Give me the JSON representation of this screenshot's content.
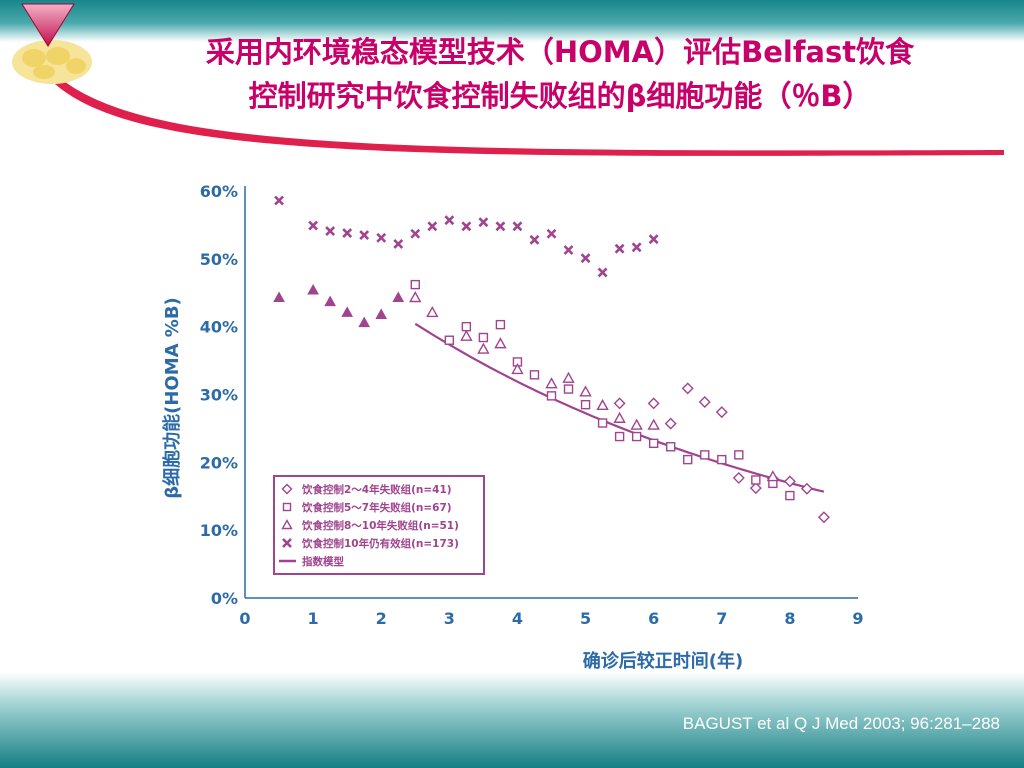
{
  "slide": {
    "title_line1": "采用内环境稳态模型技术（HOMA）评估Belfast饮食",
    "title_line2": "控制研究中饮食控制失败组的β细胞功能（％B）",
    "citation": "BAGUST et al  Q J Med 2003; 96:281–288",
    "colors": {
      "title": "#c8006a",
      "series": "#a0448f",
      "axis_text": "#2c6ba7",
      "band_top": "#17868a",
      "band_bottom": "#147f83",
      "swoosh": "#e0204c"
    }
  },
  "chart_data": {
    "type": "scatter",
    "xlabel": "确诊后较正时间(年)",
    "ylabel": "β细胞功能(HOMA %B)",
    "xlim": [
      0,
      9
    ],
    "ylim": [
      0,
      60
    ],
    "xticks": [
      "0",
      "1",
      "2",
      "3",
      "4",
      "5",
      "6",
      "7",
      "8",
      "9"
    ],
    "yticks": [
      "0%",
      "10%",
      "20%",
      "30%",
      "40%",
      "50%",
      "60%"
    ],
    "legend_position": "bottom-left",
    "series": [
      {
        "name": "饮食控制2～4年失败组(n=41)",
        "marker": "diamond",
        "points": [
          [
            5.5,
            28.7
          ],
          [
            6.0,
            28.7
          ],
          [
            6.25,
            25.7
          ],
          [
            6.5,
            30.9
          ],
          [
            6.75,
            28.9
          ],
          [
            7.0,
            27.4
          ],
          [
            7.25,
            17.7
          ],
          [
            7.5,
            16.2
          ],
          [
            7.75,
            17.6
          ],
          [
            8.0,
            17.2
          ],
          [
            8.25,
            16.1
          ],
          [
            8.5,
            11.9
          ]
        ]
      },
      {
        "name": "饮食控制5～7年失败组(n=67)",
        "marker": "square",
        "points": [
          [
            2.5,
            46.2
          ],
          [
            3.0,
            38.0
          ],
          [
            3.25,
            40.0
          ],
          [
            3.5,
            38.4
          ],
          [
            3.75,
            40.3
          ],
          [
            4.0,
            34.8
          ],
          [
            4.25,
            32.9
          ],
          [
            4.5,
            29.8
          ],
          [
            4.75,
            30.8
          ],
          [
            5.0,
            28.5
          ],
          [
            5.25,
            25.8
          ],
          [
            5.5,
            23.8
          ],
          [
            5.75,
            23.8
          ],
          [
            6.0,
            22.8
          ],
          [
            6.25,
            22.3
          ],
          [
            6.5,
            20.4
          ],
          [
            6.75,
            21.1
          ],
          [
            7.0,
            20.4
          ],
          [
            7.25,
            21.1
          ],
          [
            7.5,
            17.4
          ],
          [
            7.75,
            16.9
          ],
          [
            8.0,
            15.1
          ]
        ]
      },
      {
        "name": "饮食控制8～10年失败组(n=51)",
        "marker": "triangle",
        "points": [
          [
            2.5,
            44.3
          ],
          [
            2.75,
            42.1
          ],
          [
            3.25,
            38.6
          ],
          [
            3.5,
            36.7
          ],
          [
            3.75,
            37.5
          ],
          [
            4.0,
            33.7
          ],
          [
            4.5,
            31.6
          ],
          [
            4.75,
            32.4
          ],
          [
            5.0,
            30.4
          ],
          [
            5.25,
            28.4
          ],
          [
            5.5,
            26.5
          ],
          [
            5.75,
            25.5
          ],
          [
            6.0,
            25.5
          ],
          [
            7.75,
            17.9
          ]
        ]
      },
      {
        "name": "饮食控制10年仍有效组(n=173)",
        "marker": "x",
        "points": [
          [
            0.5,
            58.6
          ],
          [
            1.0,
            54.9
          ],
          [
            1.25,
            54.1
          ],
          [
            1.5,
            53.8
          ],
          [
            1.75,
            53.5
          ],
          [
            2.0,
            53.1
          ],
          [
            2.25,
            52.2
          ],
          [
            2.5,
            53.7
          ],
          [
            2.75,
            54.8
          ],
          [
            3.0,
            55.7
          ],
          [
            3.25,
            54.8
          ],
          [
            3.5,
            55.4
          ],
          [
            3.75,
            54.8
          ],
          [
            4.0,
            54.8
          ],
          [
            4.25,
            52.8
          ],
          [
            4.5,
            53.7
          ],
          [
            4.75,
            51.3
          ],
          [
            5.0,
            50.1
          ],
          [
            5.25,
            48.0
          ],
          [
            5.5,
            51.5
          ],
          [
            5.75,
            51.7
          ],
          [
            6.0,
            52.9
          ]
        ]
      },
      {
        "name": "",
        "marker": "filled-triangle",
        "points": [
          [
            0.5,
            44.3
          ],
          [
            1.0,
            45.4
          ],
          [
            1.25,
            43.7
          ],
          [
            1.5,
            42.1
          ],
          [
            1.75,
            40.6
          ],
          [
            2.0,
            41.8
          ],
          [
            2.25,
            44.3
          ]
        ]
      },
      {
        "name": "指数模型",
        "marker": "line",
        "model": {
          "form": "exponential",
          "a": 60.0,
          "b": -0.158,
          "x_range": [
            2.5,
            8.5
          ]
        }
      }
    ]
  }
}
